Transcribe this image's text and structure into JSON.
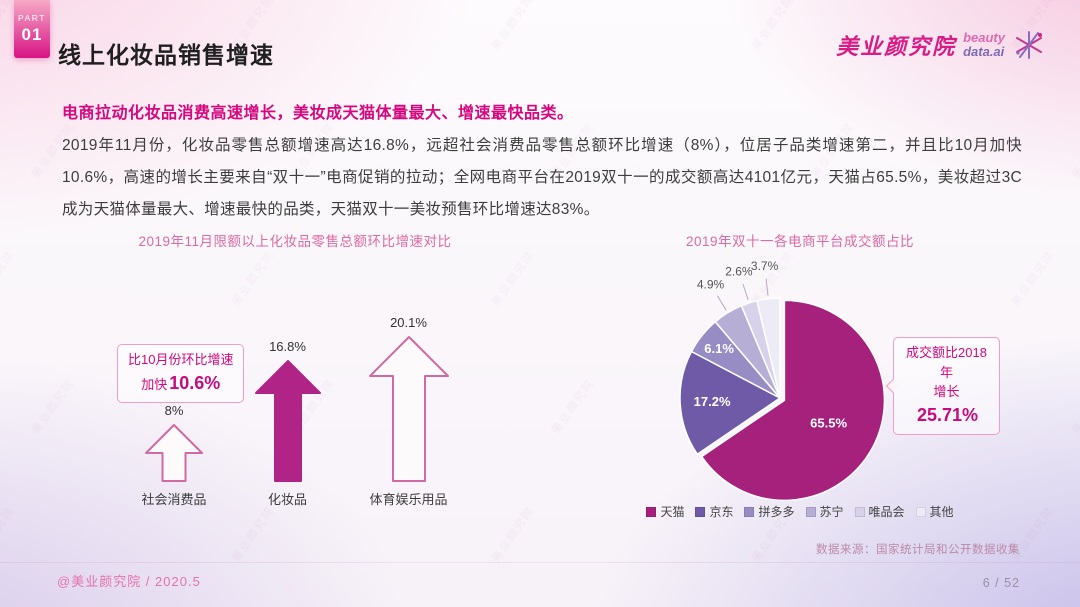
{
  "page": {
    "part_label": "PART",
    "part_number": "01",
    "title": "线上化妆品销售增速",
    "brand": "美业颜究院",
    "brand_sub1": "beauty",
    "brand_sub2": "data.ai",
    "watermark": "美业颜究院"
  },
  "lead": "电商拉动化妆品消费高速增长，美妆成天猫体量最大、增速最快品类。",
  "body": "2019年11月份，化妆品零售总额增速高达16.8%，远超社会消费品零售总额环比增速（8%），位居子品类增速第二，并且比10月加快10.6%，高速的增长主要来自“双十一”电商促销的拉动；全网电商平台在2019双十一的成交额高达4101亿元，天猫占65.5%，美妆超过3C成为天猫体量最大、增速最快的品类，天猫双十一美妆预售环比增速达83%。",
  "chart_data": [
    {
      "type": "bar",
      "title": "2019年11月限额以上化妆品零售总额环比增速对比",
      "categories": [
        "社会消费品",
        "化妆品",
        "体育娱乐用品"
      ],
      "values": [
        8,
        16.8,
        20.1
      ],
      "value_labels": [
        "8%",
        "16.8%",
        "20.1%"
      ],
      "xlabel": "",
      "ylabel": "",
      "highlight_index": 1,
      "highlight_color": "#b02487",
      "outline_color": "#cf6aa3",
      "annotation": {
        "line1": "比10月份环比增速",
        "line2_prefix": "加快",
        "line2_value": "10.6%"
      }
    },
    {
      "type": "pie",
      "title": "2019年双十一各电商平台成交额占比",
      "categories": [
        "天猫",
        "京东",
        "拼多多",
        "苏宁",
        "唯品会",
        "其他"
      ],
      "values": [
        65.5,
        17.2,
        6.1,
        4.9,
        2.6,
        3.7
      ],
      "colors": [
        "#a6217c",
        "#6f5aa8",
        "#988cc4",
        "#b7aed6",
        "#d7d2e9",
        "#edebf5"
      ],
      "legend_position": "bottom",
      "annotation": {
        "line1": "成交额比2018年",
        "line2_prefix": "增长",
        "line2_value": "25.71%"
      }
    }
  ],
  "footer": {
    "left": "@美业颜究院 / 2020.5",
    "source": "数据来源：国家统计局和公开数据收集",
    "page": "6 / 52"
  }
}
